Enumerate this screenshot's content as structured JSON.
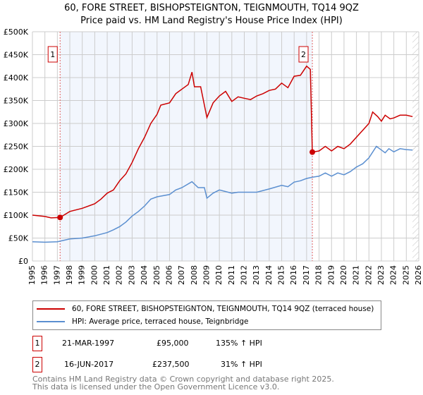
{
  "title": "60, FORE STREET, BISHOPSTEIGNTON, TEIGNMOUTH, TQ14 9QZ",
  "subtitle": "Price paid vs. HM Land Registry's House Price Index (HPI)",
  "chart_data": {
    "type": "line",
    "title": "60, FORE STREET, BISHOPSTEIGNTON, TEIGNMOUTH, TQ14 9QZ",
    "subtitle": "Price paid vs. HM Land Registry's House Price Index (HPI)",
    "xlim": [
      1995,
      2026
    ],
    "ylim": [
      0,
      500000
    ],
    "xticks": [
      "1995",
      "1996",
      "1997",
      "1998",
      "1999",
      "2000",
      "2001",
      "2002",
      "2003",
      "2004",
      "2005",
      "2006",
      "2007",
      "2008",
      "2009",
      "2010",
      "2011",
      "2012",
      "2013",
      "2014",
      "2015",
      "2016",
      "2017",
      "2018",
      "2019",
      "2020",
      "2021",
      "2022",
      "2023",
      "2024",
      "2025",
      "2026"
    ],
    "yticks": [
      {
        "v": 0,
        "label": "£0"
      },
      {
        "v": 50000,
        "label": "£50K"
      },
      {
        "v": 100000,
        "label": "£100K"
      },
      {
        "v": 150000,
        "label": "£150K"
      },
      {
        "v": 200000,
        "label": "£200K"
      },
      {
        "v": 250000,
        "label": "£250K"
      },
      {
        "v": 300000,
        "label": "£300K"
      },
      {
        "v": 350000,
        "label": "£350K"
      },
      {
        "v": 400000,
        "label": "£400K"
      },
      {
        "v": 450000,
        "label": "£450K"
      },
      {
        "v": 500000,
        "label": "£500K"
      }
    ],
    "grid": true,
    "shaded_range": [
      1997.22,
      2017.46
    ],
    "hatched_from": 2025.5,
    "series": [
      {
        "name": "60, FORE STREET, BISHOPSTEIGNTON, TEIGNMOUTH, TQ14 9QZ (terraced house)",
        "color": "#cc0000",
        "x": [
          1995,
          1996,
          1996.5,
          1997.22,
          1998,
          1999,
          2000,
          2000.5,
          2001,
          2001.5,
          2002,
          2002.5,
          2003,
          2003.5,
          2004,
          2004.5,
          2005,
          2005.3,
          2006,
          2006.5,
          2007,
          2007.5,
          2007.8,
          2008,
          2008.5,
          2009,
          2009.5,
          2010,
          2010.5,
          2011,
          2011.5,
          2012,
          2012.5,
          2013,
          2013.5,
          2014,
          2014.5,
          2015,
          2015.5,
          2016,
          2016.5,
          2017,
          2017.3,
          2017.46,
          2018,
          2018.5,
          2019,
          2019.5,
          2020,
          2020.5,
          2021,
          2021.5,
          2022,
          2022.3,
          2022.7,
          2023,
          2023.3,
          2023.7,
          2024,
          2024.5,
          2025,
          2025.5
        ],
        "y": [
          100000,
          97000,
          94000,
          95000,
          108000,
          115000,
          125000,
          135000,
          148000,
          155000,
          175000,
          190000,
          215000,
          245000,
          270000,
          300000,
          320000,
          340000,
          345000,
          365000,
          375000,
          385000,
          412000,
          380000,
          380000,
          313000,
          345000,
          360000,
          370000,
          348000,
          358000,
          355000,
          352000,
          360000,
          365000,
          372000,
          375000,
          388000,
          378000,
          403000,
          405000,
          425000,
          418000,
          237500,
          240000,
          250000,
          240000,
          250000,
          245000,
          255000,
          270000,
          285000,
          300000,
          325000,
          315000,
          305000,
          318000,
          310000,
          312000,
          318000,
          318000,
          315000
        ]
      },
      {
        "name": "HPI: Average price, terraced house, Teignbridge",
        "color": "#5b8fd0",
        "x": [
          1995,
          1996,
          1997,
          1998,
          1999,
          2000,
          2001,
          2001.5,
          2002,
          2002.5,
          2003,
          2003.5,
          2004,
          2004.5,
          2005,
          2006,
          2006.5,
          2007,
          2007.8,
          2008.3,
          2008.8,
          2009,
          2009.5,
          2010,
          2011,
          2011.5,
          2012,
          2013,
          2014,
          2015,
          2015.5,
          2016,
          2016.5,
          2017,
          2017.5,
          2018,
          2018.5,
          2019,
          2019.5,
          2020,
          2020.5,
          2021,
          2021.5,
          2022,
          2022.6,
          2023,
          2023.3,
          2023.6,
          2024,
          2024.5,
          2025,
          2025.5
        ],
        "y": [
          42000,
          41000,
          42000,
          48000,
          50000,
          55000,
          62000,
          68000,
          75000,
          85000,
          98000,
          108000,
          120000,
          135000,
          140000,
          145000,
          155000,
          160000,
          173000,
          160000,
          160000,
          137000,
          148000,
          155000,
          148000,
          150000,
          150000,
          150000,
          157000,
          165000,
          162000,
          172000,
          175000,
          180000,
          183000,
          185000,
          192000,
          185000,
          192000,
          188000,
          195000,
          205000,
          212000,
          225000,
          250000,
          242000,
          236000,
          245000,
          238000,
          245000,
          243000,
          242000
        ]
      }
    ],
    "markers": [
      {
        "label": "1",
        "x": 1997.22,
        "y": 95000
      },
      {
        "label": "2",
        "x": 2017.46,
        "y": 237500
      }
    ]
  },
  "legend": [
    "60, FORE STREET, BISHOPSTEIGNTON, TEIGNMOUTH, TQ14 9QZ (terraced house)",
    "HPI: Average price, terraced house, Teignbridge"
  ],
  "sales": [
    {
      "num": "1",
      "date": "21-MAR-1997",
      "price": "£95,000",
      "hpi": "135% ↑ HPI"
    },
    {
      "num": "2",
      "date": "16-JUN-2017",
      "price": "£237,500",
      "hpi": "31% ↑ HPI"
    }
  ],
  "footer": [
    "Contains HM Land Registry data © Crown copyright and database right 2025.",
    "This data is licensed under the Open Government Licence v3.0."
  ]
}
